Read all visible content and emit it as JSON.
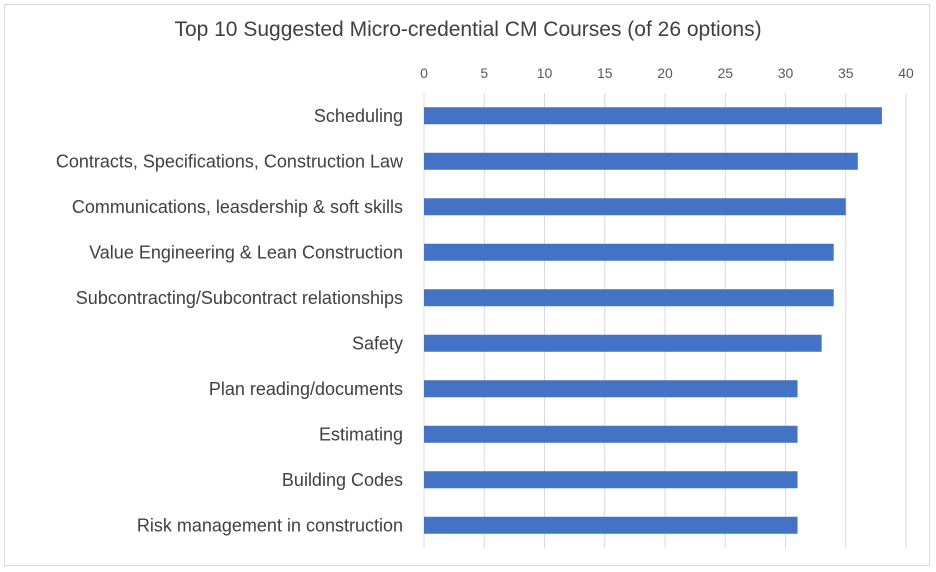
{
  "chart_data": {
    "type": "bar",
    "orientation": "horizontal",
    "title": "Top 10 Suggested Micro-credential CM Courses (of 26 options)",
    "xlabel": "",
    "ylabel": "",
    "xlim": [
      0,
      40
    ],
    "x_ticks": [
      "0",
      "5",
      "10",
      "15",
      "20",
      "25",
      "30",
      "35",
      "40"
    ],
    "x_axis_position": "top",
    "grid": true,
    "legend": "none",
    "bar_color": "#4472c4",
    "categories": [
      "Scheduling",
      "Contracts, Specifications, Construction Law",
      "Communications, leasdership & soft skills",
      "Value Engineering & Lean Construction",
      "Subcontracting/Subcontract relationships",
      "Safety",
      "Plan reading/documents",
      "Estimating",
      "Building Codes",
      "Risk management in construction"
    ],
    "values": [
      38,
      36,
      35,
      34,
      34,
      33,
      31,
      31,
      31,
      31
    ]
  }
}
